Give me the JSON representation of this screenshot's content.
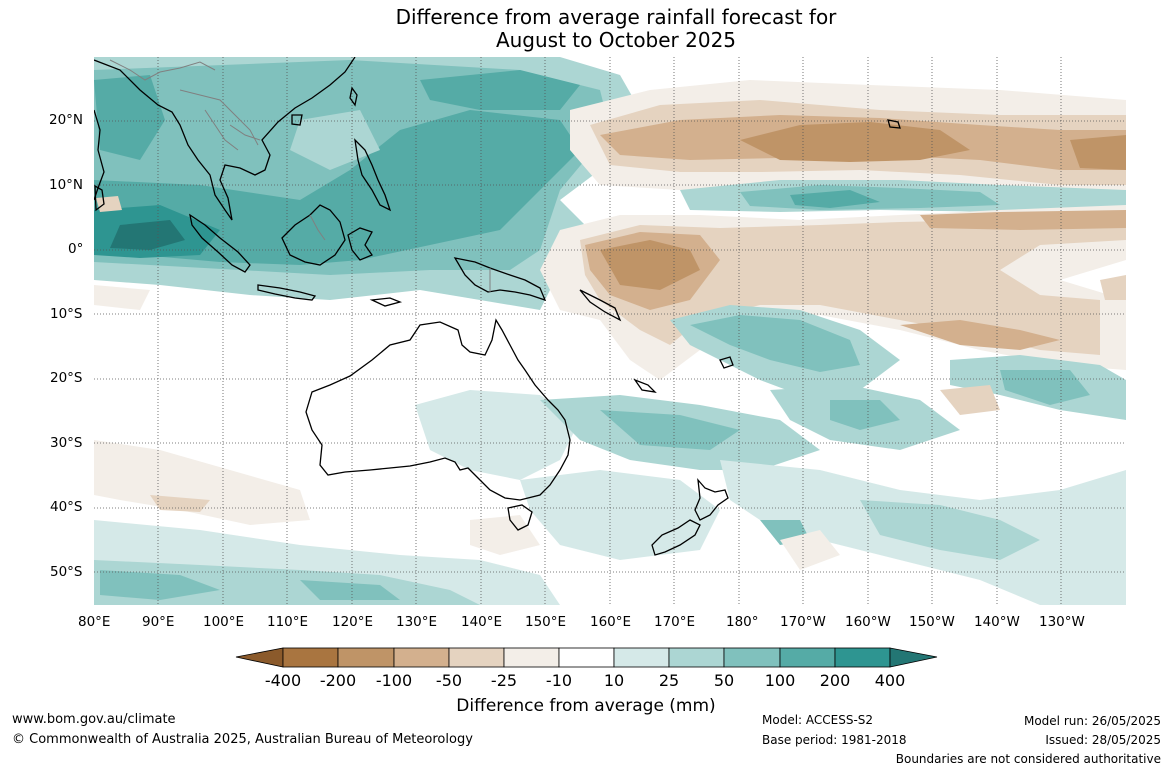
{
  "title": {
    "line1": "Difference from average rainfall forecast for",
    "line2": "August to October 2025"
  },
  "map": {
    "lat_labels": [
      "20°N",
      "10°N",
      "0°",
      "10°S",
      "20°S",
      "30°S",
      "40°S",
      "50°S"
    ],
    "lon_labels": [
      "80°E",
      "90°E",
      "100°E",
      "110°E",
      "120°E",
      "130°E",
      "140°E",
      "150°E",
      "160°E",
      "170°E",
      "180°",
      "170°W",
      "160°W",
      "150°W",
      "140°W",
      "130°W"
    ],
    "grid": true,
    "land_outline_color": "#000000",
    "border_color": "#808080"
  },
  "colorbar": {
    "title": "Difference from average (mm)",
    "labels": [
      "-400",
      "-200",
      "-100",
      "-50",
      "-25",
      "-10",
      "10",
      "25",
      "50",
      "100",
      "200",
      "400"
    ],
    "colors": [
      "#8b5a2b",
      "#a97540",
      "#bf9467",
      "#d3b08e",
      "#e5d3c0",
      "#f3eee8",
      "#ffffff",
      "#d5e9e8",
      "#acd6d3",
      "#80c1bd",
      "#55aba6",
      "#2e9591",
      "#237674"
    ]
  },
  "footer": {
    "website": "www.bom.gov.au/climate",
    "copyright": "© Commonwealth of Australia 2025, Australian Bureau of Meteorology",
    "model": "Model: ACCESS-S2",
    "base_period": "Base period: 1981-2018",
    "model_run": "Model run: 26/05/2025",
    "issued": "Issued: 28/05/2025",
    "disclaimer": "Boundaries are not considered authoritative"
  }
}
